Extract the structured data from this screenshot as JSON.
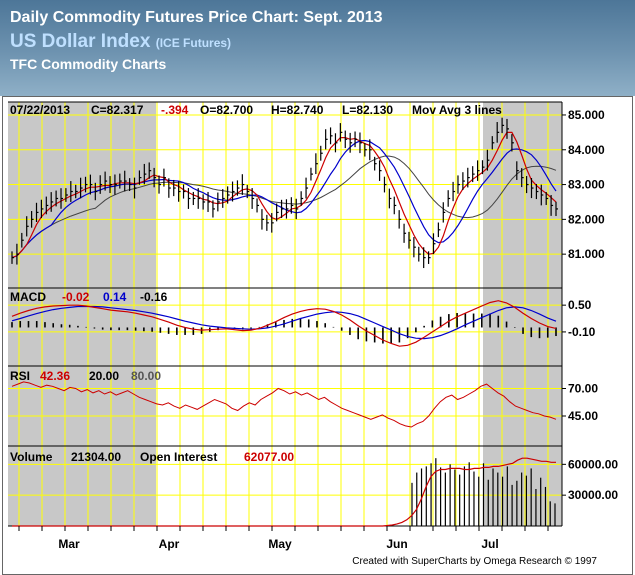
{
  "header": {
    "title": "Daily Commodity Futures Price Chart: Sept. 2013",
    "subtitle": "US Dollar Index",
    "subtitle_note": "(ICE Futures)",
    "source": "TFC Commodity Charts"
  },
  "credit": "Created with SuperCharts by Omega Research © 1997",
  "colors": {
    "price": "#000000",
    "ma_fast": "#cc0000",
    "ma_mid": "#0000cc",
    "ma_slow": "#444444",
    "shade": "#c8c8c8",
    "grid": "#ffff00"
  },
  "chart_data": [
    {
      "type": "line",
      "title": "Price",
      "info": {
        "date": "07/22/2013",
        "close": "C=82.317",
        "change": "-.394",
        "open": "O=82.700",
        "high": "H=82.740",
        "low": "L=82.130",
        "note": "Mov Avg 3 lines"
      },
      "x_labels": [
        "Mar",
        "Apr",
        "May",
        "Jun",
        "Jul"
      ],
      "y_ticks": [
        "85.000",
        "84.000",
        "83.000",
        "82.000",
        "81.000"
      ],
      "ylim": [
        80.2,
        85.2
      ],
      "closes": [
        80.9,
        81.0,
        81.4,
        81.8,
        82.0,
        82.2,
        82.3,
        82.4,
        82.5,
        82.6,
        82.6,
        82.7,
        82.8,
        82.8,
        82.9,
        83.0,
        83.0,
        82.8,
        83.0,
        83.1,
        83.0,
        83.0,
        83.1,
        83.1,
        83.0,
        82.9,
        83.2,
        83.3,
        83.4,
        83.2,
        83.0,
        83.2,
        82.9,
        82.9,
        82.8,
        82.8,
        82.6,
        82.6,
        82.6,
        82.5,
        82.5,
        82.3,
        82.5,
        82.6,
        82.7,
        82.8,
        82.9,
        83.0,
        82.8,
        82.6,
        82.4,
        82.0,
        81.9,
        81.9,
        82.2,
        82.3,
        82.3,
        82.4,
        82.3,
        82.6,
        82.9,
        83.3,
        83.6,
        83.9,
        84.3,
        84.4,
        84.2,
        84.5,
        84.3,
        84.2,
        84.3,
        84.2,
        84.0,
        84.0,
        83.6,
        83.4,
        83.0,
        82.6,
        82.4,
        82.0,
        81.6,
        81.4,
        81.2,
        81.0,
        80.9,
        80.9,
        81.3,
        81.7,
        82.2,
        82.6,
        82.8,
        83.0,
        83.1,
        83.2,
        83.3,
        83.4,
        83.5,
        83.7,
        84.2,
        84.5,
        84.7,
        84.6,
        84.2,
        83.4,
        83.2,
        83.0,
        82.9,
        82.8,
        82.7,
        82.6,
        82.4,
        82.3
      ],
      "series": [
        {
          "name": "Price",
          "values": "closes"
        },
        {
          "name": "",
          "values": "ma_fast"
        },
        {
          "name": "",
          "values": "ma_mid"
        },
        {
          "name": "",
          "values": "ma_slow"
        }
      ]
    },
    {
      "type": "line",
      "title": "MACD",
      "legend": {
        "label": "MACD",
        "v1": "-0.02",
        "v2": "0.14",
        "v3": "-0.16"
      },
      "y_ticks": [
        "0.50",
        "-0.10"
      ],
      "ylim": [
        -0.55,
        0.75
      ],
      "macd": [
        0.25,
        0.32,
        0.38,
        0.43,
        0.46,
        0.48,
        0.49,
        0.5,
        0.5,
        0.48,
        0.45,
        0.42,
        0.39,
        0.37,
        0.35,
        0.32,
        0.28,
        0.24,
        0.18,
        0.12,
        0.05,
        0.0,
        -0.04,
        -0.06,
        -0.05,
        -0.04,
        -0.03,
        -0.05,
        -0.07,
        -0.06,
        -0.02,
        0.05,
        0.13,
        0.22,
        0.3,
        0.36,
        0.4,
        0.42,
        0.41,
        0.36,
        0.28,
        0.17,
        0.04,
        -0.08,
        -0.18,
        -0.28,
        -0.36,
        -0.42,
        -0.4,
        -0.33,
        -0.22,
        -0.1,
        0.02,
        0.14,
        0.24,
        0.32,
        0.4,
        0.48,
        0.56,
        0.6,
        0.55,
        0.45,
        0.32,
        0.2,
        0.1,
        0.02,
        -0.02
      ],
      "signal": [
        0.15,
        0.2,
        0.26,
        0.31,
        0.36,
        0.4,
        0.43,
        0.45,
        0.47,
        0.47,
        0.47,
        0.46,
        0.44,
        0.42,
        0.4,
        0.38,
        0.35,
        0.32,
        0.28,
        0.24,
        0.19,
        0.14,
        0.1,
        0.06,
        0.03,
        0.01,
        -0.01,
        -0.02,
        -0.03,
        -0.04,
        -0.03,
        -0.01,
        0.03,
        0.08,
        0.14,
        0.2,
        0.25,
        0.3,
        0.33,
        0.35,
        0.34,
        0.31,
        0.26,
        0.18,
        0.1,
        0.02,
        -0.06,
        -0.14,
        -0.2,
        -0.24,
        -0.25,
        -0.23,
        -0.18,
        -0.11,
        -0.03,
        0.06,
        0.14,
        0.22,
        0.3,
        0.38,
        0.44,
        0.46,
        0.44,
        0.38,
        0.3,
        0.21,
        0.14
      ]
    },
    {
      "type": "line",
      "title": "RSI",
      "legend": {
        "label": "RSI",
        "v1": "42.36",
        "v2": "20.00",
        "v3": "80.00"
      },
      "y_ticks": [
        "70.00",
        "45.00"
      ],
      "ylim": [
        25,
        85
      ],
      "values": [
        72,
        74,
        76,
        75,
        73,
        71,
        73,
        72,
        70,
        68,
        71,
        70,
        67,
        69,
        66,
        68,
        65,
        67,
        64,
        66,
        68,
        65,
        62,
        60,
        58,
        56,
        55,
        57,
        54,
        52,
        55,
        53,
        51,
        54,
        57,
        60,
        58,
        56,
        52,
        50,
        54,
        57,
        55,
        60,
        63,
        66,
        70,
        68,
        65,
        67,
        64,
        66,
        63,
        60,
        62,
        58,
        55,
        52,
        50,
        48,
        46,
        44,
        42,
        44,
        46,
        43,
        41,
        38,
        36,
        35,
        38,
        40,
        45,
        52,
        58,
        62,
        64,
        60,
        62,
        65,
        68,
        72,
        74,
        70,
        66,
        63,
        58,
        54,
        52,
        50,
        48,
        47,
        45,
        44,
        42
      ]
    },
    {
      "type": "bar",
      "title": "Volume",
      "legend": {
        "label": "Volume",
        "volume": "21304.00",
        "oi_label": "Open Interest",
        "oi": "62077.00"
      },
      "y_ticks": [
        "60000.00",
        "30000.00"
      ],
      "ylim": [
        0,
        72000
      ],
      "volume": [
        42000,
        52000,
        56000,
        58000,
        61000,
        66000,
        57000,
        52000,
        60000,
        55000,
        50000,
        58000,
        62000,
        53000,
        48000,
        61000,
        45000,
        56000,
        52000,
        48000,
        58000,
        40000,
        44000,
        52000,
        49000,
        56000,
        36000,
        47000,
        38000,
        24000,
        22000
      ],
      "open_interest": [
        0,
        0,
        0,
        0,
        0,
        0,
        0,
        0,
        0,
        0,
        0,
        0,
        0,
        0,
        0,
        0,
        0,
        0,
        0,
        0,
        0,
        0,
        0,
        0,
        0,
        0,
        0,
        0,
        0,
        0,
        0,
        0,
        0,
        0,
        0,
        0,
        0,
        0,
        0,
        0,
        0,
        0,
        0,
        0,
        0,
        0,
        0,
        0,
        0,
        0,
        0,
        0,
        0,
        0,
        0,
        0,
        0,
        0,
        0,
        0,
        0,
        0,
        0,
        0,
        0,
        0,
        0,
        0,
        0,
        0,
        0,
        0,
        0,
        0,
        0,
        0,
        0,
        0,
        500,
        1000,
        2000,
        3500,
        6000,
        10000,
        16000,
        26000,
        38000,
        48000,
        53000,
        55000,
        55000,
        56000,
        56000,
        56000,
        55000,
        55000,
        56000,
        56000,
        57000,
        57000,
        58000,
        58000,
        59000,
        60000,
        61000,
        64000,
        66000,
        66000,
        65000,
        64000,
        63000,
        63000,
        62000,
        62000
      ]
    }
  ]
}
